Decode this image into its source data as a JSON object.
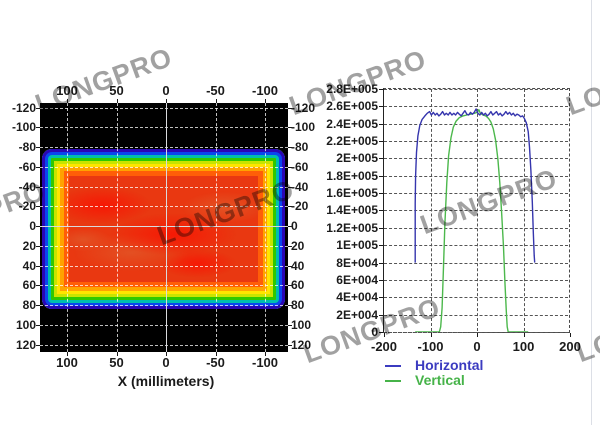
{
  "watermark": {
    "text": "LONGPRO",
    "color": "#8a8a8a"
  },
  "left_plot": {
    "xlabel": "X (millimeters)",
    "top_ticks": [
      "100",
      "50",
      "0",
      "-50",
      "-100"
    ],
    "bottom_ticks": [
      "100",
      "50",
      "0",
      "-50",
      "-100"
    ],
    "left_ticks": [
      "-120",
      "-100",
      "-80",
      "-60",
      "-40",
      "-20",
      "0",
      "20",
      "40",
      "60",
      "80",
      "100",
      "120"
    ],
    "right_ticks": [
      "-120",
      "-100",
      "-80",
      "-60",
      "-40",
      "-20",
      "0",
      "20",
      "40",
      "60",
      "80",
      "100",
      "120"
    ]
  },
  "right_plot": {
    "y_ticks": [
      "2.8E+005",
      "2.6E+005",
      "2.4E+005",
      "2.2E+005",
      "2E+005",
      "1.8E+005",
      "1.6E+005",
      "1.4E+005",
      "1.2E+005",
      "1E+005",
      "8E+004",
      "6E+004",
      "4E+004",
      "2E+004",
      "0"
    ],
    "x_ticks": [
      "-200",
      "-100",
      "0",
      "100",
      "200"
    ],
    "legend": [
      {
        "label": "Horizontal",
        "color": "#3b3bc0"
      },
      {
        "label": "Vertical",
        "color": "#46b349"
      }
    ]
  },
  "chart_data": [
    {
      "type": "heatmap",
      "title": "",
      "xlabel": "X (millimeters)",
      "x_axis_reversed": true,
      "x_ticks": [
        100,
        50,
        0,
        -50,
        -100
      ],
      "y_ticks": [
        -120,
        -100,
        -80,
        -60,
        -40,
        -20,
        0,
        20,
        40,
        60,
        80,
        100,
        120
      ],
      "x_range": [
        128,
        -125
      ],
      "y_range": [
        -125,
        127
      ],
      "beam_extent_mm": {
        "x": [
          -125,
          126
        ],
        "y": [
          -79,
          83
        ]
      },
      "description": "Flat-top rectangular laser beam intensity map: black background, rainbow contour edge (blue to green to yellow to orange) and saturated red core with mottled hot spots",
      "colormap": [
        "#000000",
        "#2a06b4",
        "#0a46ee",
        "#00bfae",
        "#30c800",
        "#c8e400",
        "#ffe400",
        "#ffa200",
        "#ff5e08",
        "#e93811",
        "#f71604"
      ],
      "grid": true
    },
    {
      "type": "line",
      "title": "",
      "xlabel": "",
      "ylabel": "",
      "xlim": [
        -200,
        200
      ],
      "ylim": [
        0,
        280000
      ],
      "x_tick_values": [
        -200,
        -100,
        0,
        100,
        200
      ],
      "y_tick_step": 20000,
      "grid": true,
      "legend_position": "bottom-left",
      "series": [
        {
          "name": "Horizontal",
          "color": "#3535ad",
          "points": [
            [
              -133,
              80000
            ],
            [
              -133,
              148000
            ],
            [
              -132,
              180000
            ],
            [
              -130,
              207000
            ],
            [
              -127,
              226000
            ],
            [
              -123,
              238000
            ],
            [
              -118,
              245000
            ],
            [
              -112,
              249000
            ],
            [
              -107,
              252000
            ],
            [
              -102,
              254000
            ],
            [
              -98,
              250000
            ],
            [
              -94,
              253000
            ],
            [
              -90,
              250000
            ],
            [
              -86,
              252000
            ],
            [
              -82,
              249000
            ],
            [
              -78,
              251000
            ],
            [
              -74,
              254000
            ],
            [
              -70,
              250000
            ],
            [
              -66,
              252000
            ],
            [
              -62,
              250000
            ],
            [
              -58,
              253000
            ],
            [
              -54,
              250000
            ],
            [
              -50,
              252000
            ],
            [
              -46,
              250000
            ],
            [
              -42,
              253000
            ],
            [
              -38,
              251000
            ],
            [
              -34,
              249000
            ],
            [
              -30,
              252000
            ],
            [
              -26,
              255000
            ],
            [
              -22,
              251000
            ],
            [
              -18,
              250000
            ],
            [
              -14,
              253000
            ],
            [
              -10,
              251000
            ],
            [
              -6,
              253000
            ],
            [
              -2,
              257000
            ],
            [
              2,
              252000
            ],
            [
              6,
              250000
            ],
            [
              10,
              253000
            ],
            [
              14,
              250000
            ],
            [
              18,
              252000
            ],
            [
              22,
              249000
            ],
            [
              26,
              251000
            ],
            [
              30,
              254000
            ],
            [
              34,
              250000
            ],
            [
              38,
              252000
            ],
            [
              42,
              254000
            ],
            [
              46,
              250000
            ],
            [
              50,
              252000
            ],
            [
              54,
              249000
            ],
            [
              58,
              251000
            ],
            [
              62,
              254000
            ],
            [
              66,
              251000
            ],
            [
              70,
              253000
            ],
            [
              74,
              250000
            ],
            [
              78,
              252000
            ],
            [
              82,
              249000
            ],
            [
              86,
              251000
            ],
            [
              90,
              250000
            ],
            [
              94,
              248000
            ],
            [
              98,
              249000
            ],
            [
              102,
              246000
            ],
            [
              106,
              241000
            ],
            [
              110,
              231000
            ],
            [
              113,
              213000
            ],
            [
              116,
              186000
            ],
            [
              119,
              150000
            ],
            [
              121,
              115000
            ],
            [
              123,
              88000
            ],
            [
              124,
              80000
            ]
          ]
        },
        {
          "name": "Vertical",
          "color": "#4cb84c",
          "points": [
            [
              -133,
              0
            ],
            [
              -81,
              0
            ],
            [
              -78,
              6000
            ],
            [
              -75,
              28000
            ],
            [
              -72,
              75000
            ],
            [
              -69,
              125000
            ],
            [
              -65,
              172000
            ],
            [
              -61,
              203000
            ],
            [
              -56,
              224000
            ],
            [
              -51,
              236000
            ],
            [
              -45,
              243000
            ],
            [
              -38,
              247000
            ],
            [
              -30,
              249000
            ],
            [
              -22,
              250000
            ],
            [
              -14,
              251000
            ],
            [
              -6,
              252000
            ],
            [
              0,
              253000
            ],
            [
              4,
              256000
            ],
            [
              7,
              252000
            ],
            [
              13,
              250000
            ],
            [
              19,
              249000
            ],
            [
              25,
              246000
            ],
            [
              30,
              242000
            ],
            [
              35,
              234000
            ],
            [
              40,
              221000
            ],
            [
              45,
              199000
            ],
            [
              49,
              172000
            ],
            [
              53,
              138000
            ],
            [
              57,
              98000
            ],
            [
              60,
              58000
            ],
            [
              63,
              24000
            ],
            [
              65,
              6000
            ],
            [
              67,
              0
            ],
            [
              110,
              0
            ]
          ]
        }
      ]
    }
  ]
}
